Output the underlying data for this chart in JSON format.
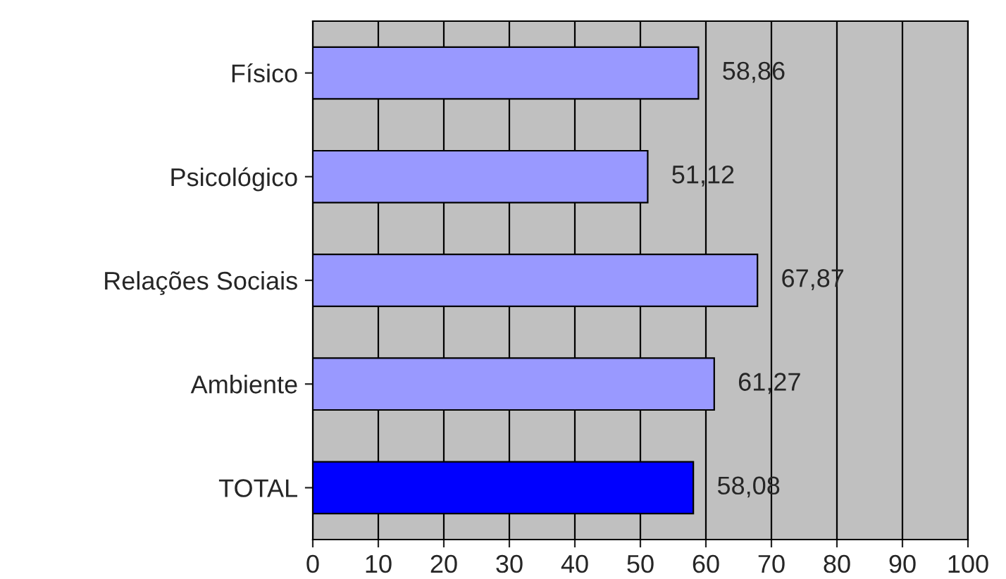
{
  "chart_data": {
    "type": "bar",
    "orientation": "horizontal",
    "categories": [
      "Físico",
      "Psicológico",
      "Relações Sociais",
      "Ambiente",
      "TOTAL"
    ],
    "values": [
      58.86,
      51.12,
      67.87,
      61.27,
      58.08
    ],
    "colors": [
      "#9999ff",
      "#9999ff",
      "#9999ff",
      "#9999ff",
      "#0000ff"
    ],
    "value_labels": [
      "58,86",
      "51,12",
      "67,87",
      "61,27",
      "58,08"
    ],
    "xlim": [
      0,
      100
    ],
    "xticks": [
      0,
      10,
      20,
      30,
      40,
      50,
      60,
      70,
      80,
      90,
      100
    ],
    "grid": "x",
    "legend": false
  }
}
